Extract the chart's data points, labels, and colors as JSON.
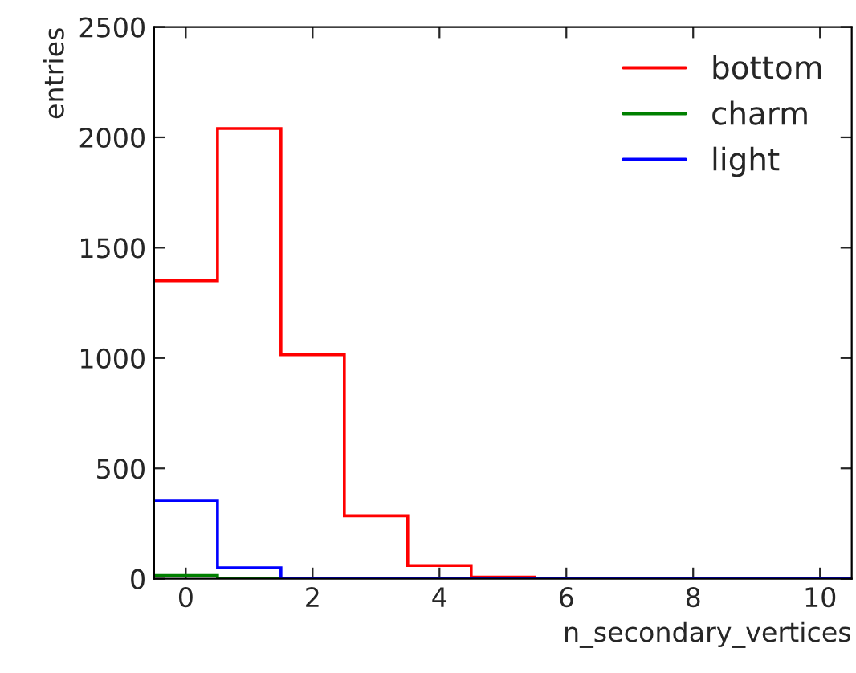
{
  "chart_data": {
    "type": "histogram",
    "xlabel": "n_secondary_vertices",
    "ylabel": "entries",
    "bins": [
      -0.5,
      0.5,
      1.5,
      2.5,
      3.5,
      4.5,
      5.5,
      6.5,
      7.5,
      8.5,
      9.5,
      10.5
    ],
    "series": [
      {
        "name": "bottom",
        "color": "#ff0000",
        "values": [
          1350,
          2040,
          1015,
          285,
          60,
          8,
          0,
          0,
          0,
          0,
          0
        ]
      },
      {
        "name": "charm",
        "color": "#008000",
        "values": [
          15,
          0,
          0,
          0,
          0,
          0,
          0,
          0,
          0,
          0,
          0
        ]
      },
      {
        "name": "light",
        "color": "#0000ff",
        "values": [
          355,
          50,
          0,
          0,
          0,
          0,
          0,
          0,
          0,
          0,
          0
        ]
      }
    ],
    "xlim": [
      -0.5,
      10.5
    ],
    "xticks": [
      0,
      2,
      4,
      6,
      8,
      10
    ],
    "ylim": [
      0,
      2500
    ],
    "yticks": [
      0,
      500,
      1000,
      1500,
      2000,
      2500
    ],
    "grid": false,
    "legend": "top right"
  }
}
